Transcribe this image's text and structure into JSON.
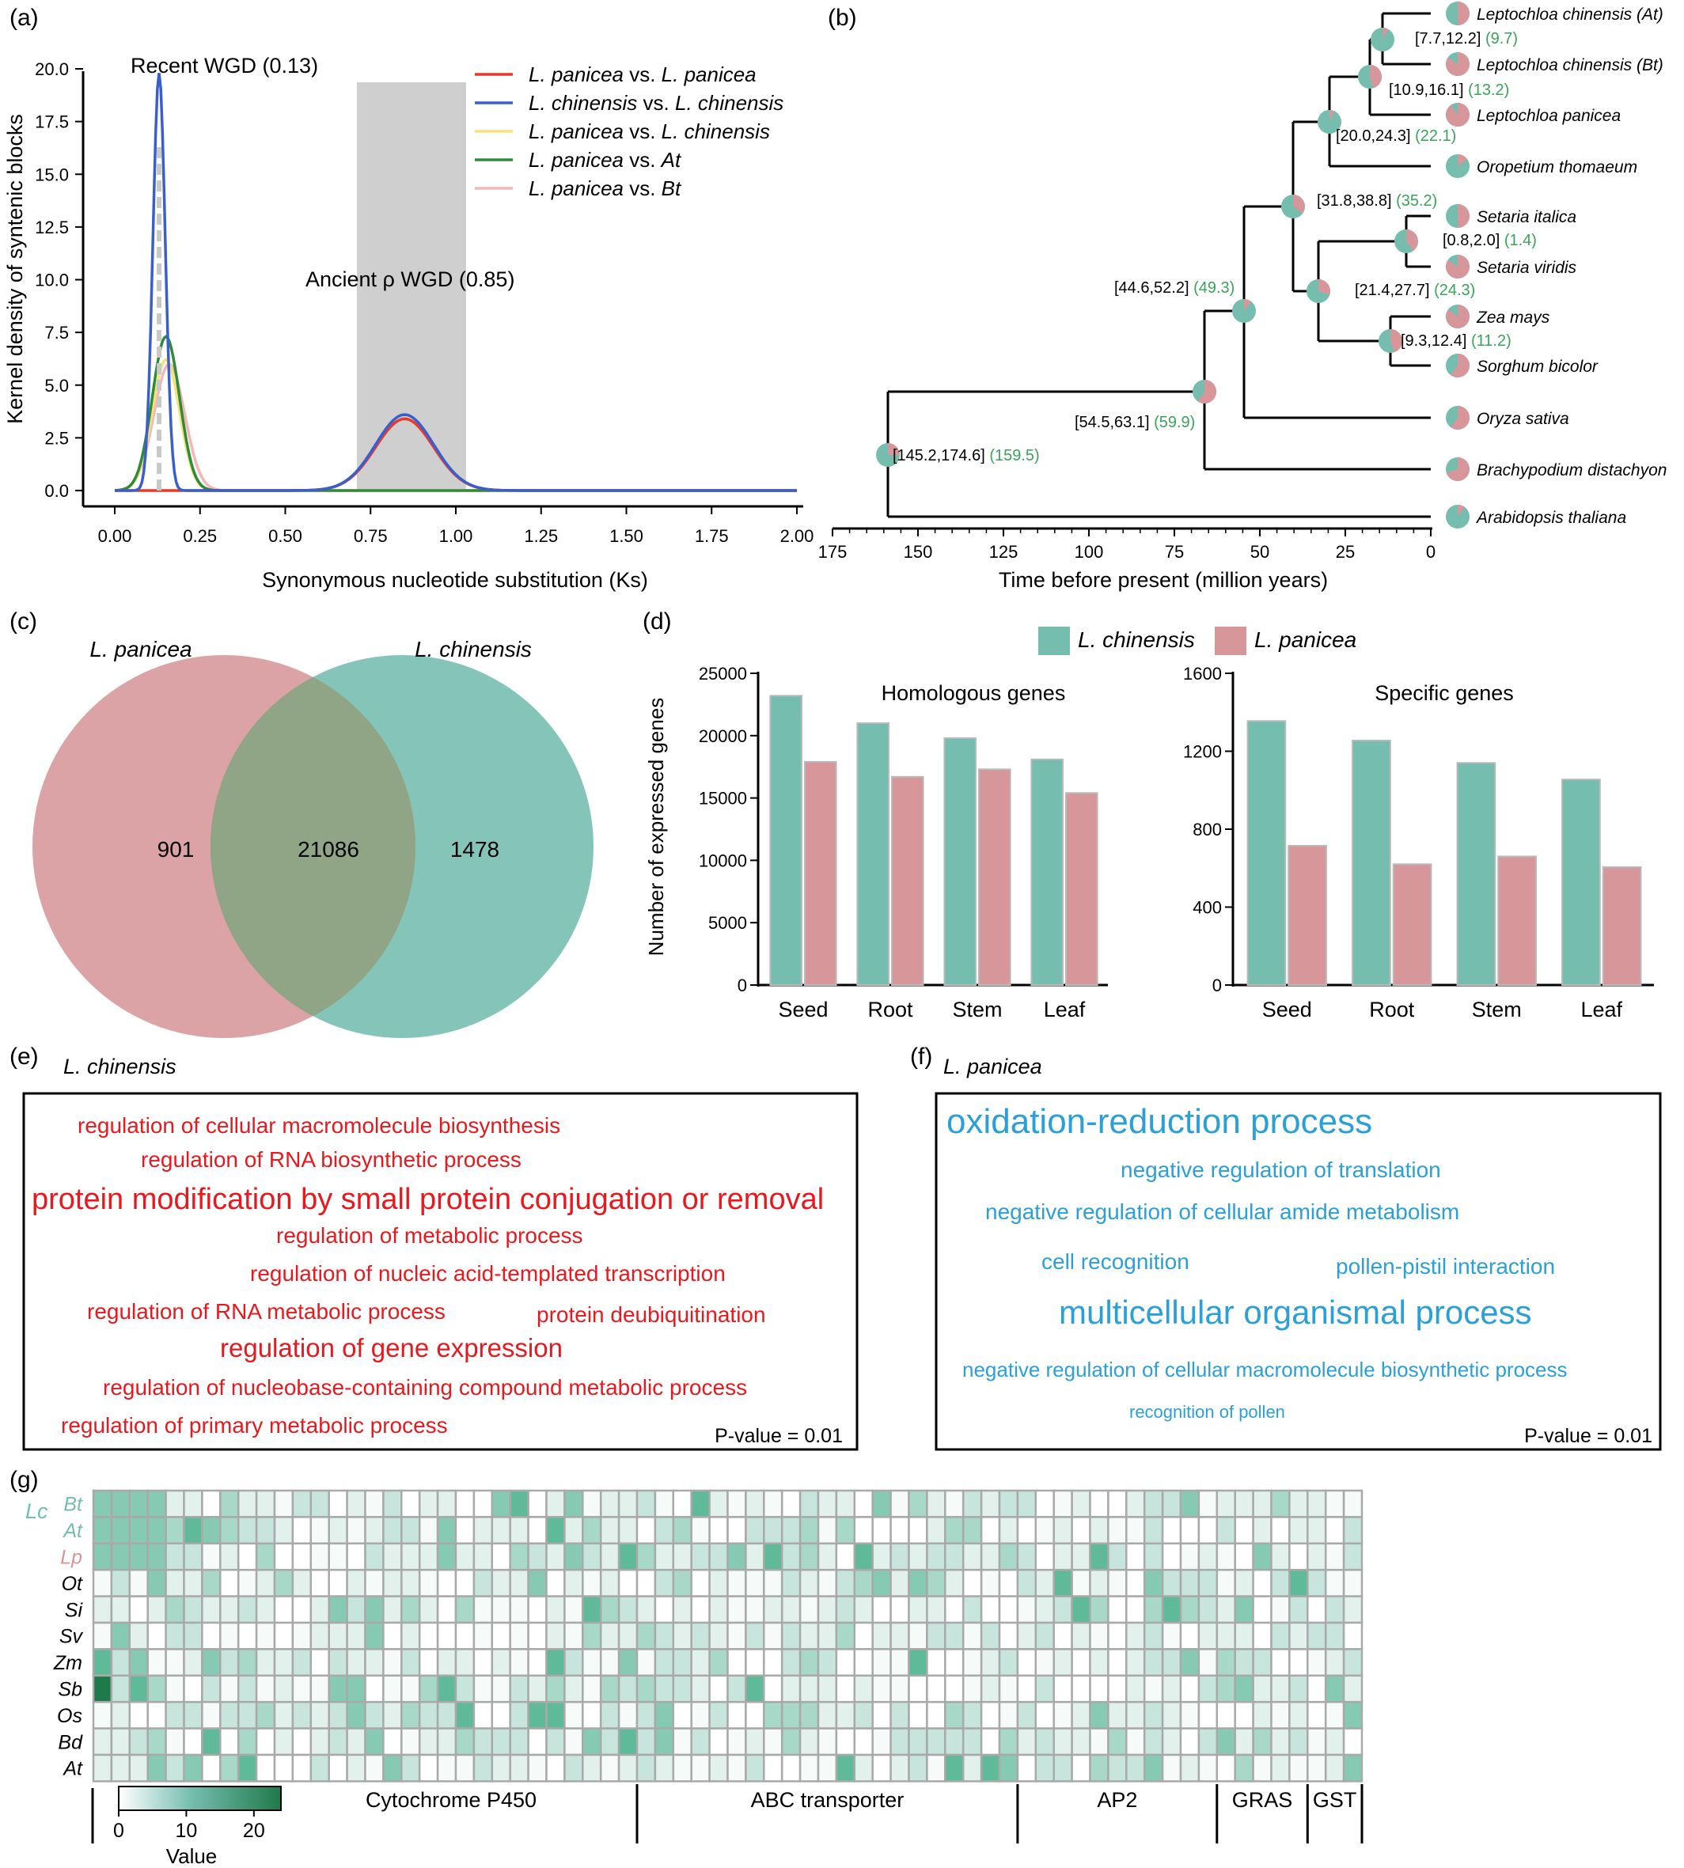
{
  "panel_labels": [
    "(a)",
    "(b)",
    "(c)",
    "(d)",
    "(e)",
    "(f)",
    "(g)"
  ],
  "colors": {
    "lc": "#74bdaf",
    "lp": "#d6969a",
    "red": "#e8191e",
    "blue": "#2b9fd8",
    "ks_lp_lp": "#e8392b",
    "ks_lc_lc": "#3a5fcd",
    "ks_lp_lc": "#f4e37a",
    "ks_lp_at": "#2e8b3a",
    "ks_lp_bt": "#f4b6b6",
    "grey": "#cfcfcf"
  },
  "chart_data": [
    {
      "type": "line",
      "panel": "a",
      "xlabel": "Synonymous nucleotide substitution (Ks)",
      "ylabel": "Kernel density of syntenic blocks",
      "xlim": [
        0,
        2.0
      ],
      "ylim": [
        0,
        20.0
      ],
      "xticks": [
        "0.00",
        "0.25",
        "0.50",
        "0.75",
        "1.00",
        "1.25",
        "1.50",
        "1.75",
        "2.00"
      ],
      "yticks": [
        "0.0",
        "2.5",
        "5.0",
        "7.5",
        "10.0",
        "12.5",
        "15.0",
        "17.5",
        "20.0"
      ],
      "annotations": [
        "Recent WGD (0.13)",
        "Ancient ρ WGD (0.85)"
      ],
      "shaded_range": [
        0.71,
        1.03
      ],
      "series": [
        {
          "name": "L. panicea vs. L. panicea",
          "peaks": [
            [
              0.85,
              3.4,
              0.085
            ]
          ]
        },
        {
          "name": "L. chinensis vs. L. chinensis",
          "peaks": [
            [
              0.13,
              19.8,
              0.018
            ],
            [
              0.85,
              3.6,
              0.085
            ]
          ]
        },
        {
          "name": "L. panicea vs. L. chinensis",
          "peaks": [
            [
              0.15,
              6.2,
              0.04
            ]
          ]
        },
        {
          "name": "L. panicea vs. At",
          "peaks": [
            [
              0.15,
              7.3,
              0.04
            ]
          ]
        },
        {
          "name": "L. panicea vs. Bt",
          "peaks": [
            [
              0.16,
              6.0,
              0.045
            ]
          ]
        }
      ]
    },
    {
      "type": "tree",
      "panel": "b",
      "xlabel": "Time before present (million years)",
      "xticks": [
        "175",
        "150",
        "125",
        "100",
        "75",
        "50",
        "25",
        "0"
      ],
      "leaves": [
        "Leptochloa chinensis (At)",
        "Leptochloa chinensis (Bt)",
        "Leptochloa panicea",
        "Oropetium thomaeum",
        "Setaria italica",
        "Setaria viridis",
        "Zea mays",
        "Sorghum bicolor",
        "Oryza sativa",
        "Brachypodium distachyon",
        "Arabidopsis thaliana"
      ],
      "nodes": [
        {
          "range": "[7.7,12.2]",
          "age": "(9.7)"
        },
        {
          "range": "[10.9,16.1]",
          "age": "(13.2)"
        },
        {
          "range": "[20.0,24.3]",
          "age": "(22.1)"
        },
        {
          "range": "[31.8,38.8]",
          "age": "(35.2)"
        },
        {
          "range": "[0.8,2.0]",
          "age": "(1.4)"
        },
        {
          "range": "[21.4,27.7]",
          "age": "(24.3)"
        },
        {
          "range": "[9.3,12.4]",
          "age": "(11.2)"
        },
        {
          "range": "[44.6,52.2]",
          "age": "(49.3)"
        },
        {
          "range": "[54.5,63.1]",
          "age": "(59.9)"
        },
        {
          "range": "[145.2,174.6]",
          "age": "(159.5)"
        }
      ]
    },
    {
      "type": "venn",
      "panel": "c",
      "sets": [
        "L. panicea",
        "L. chinensis"
      ],
      "values": {
        "only_a": "901",
        "both": "21086",
        "only_b": "1478"
      }
    },
    {
      "type": "bar",
      "panel": "d",
      "ylabel": "Number of expressed genes",
      "legend": [
        "L. chinensis",
        "L. panicea"
      ],
      "subcharts": [
        {
          "title": "Homologous genes",
          "categories": [
            "Seed",
            "Root",
            "Stem",
            "Leaf"
          ],
          "ylim": [
            0,
            25000
          ],
          "yticks": [
            "0",
            "5000",
            "10000",
            "15000",
            "20000",
            "25000"
          ],
          "series": [
            {
              "name": "L. chinensis",
              "values": [
                23200,
                21000,
                19800,
                18100
              ]
            },
            {
              "name": "L. panicea",
              "values": [
                17900,
                16700,
                17300,
                15400
              ]
            }
          ]
        },
        {
          "title": "Specific genes",
          "categories": [
            "Seed",
            "Root",
            "Stem",
            "Leaf"
          ],
          "ylim": [
            0,
            1600
          ],
          "yticks": [
            "0",
            "400",
            "800",
            "1200",
            "1600"
          ],
          "series": [
            {
              "name": "L. chinensis",
              "values": [
                1355,
                1255,
                1140,
                1055
              ]
            },
            {
              "name": "L. panicea",
              "values": [
                715,
                620,
                660,
                605
              ]
            }
          ]
        }
      ]
    },
    {
      "type": "heatmap",
      "panel": "g",
      "rows": [
        "Bt",
        "At",
        "Lp",
        "Ot",
        "Si",
        "Sv",
        "Zm",
        "Sb",
        "Os",
        "Bd",
        "At"
      ],
      "row_group_label": "Lc",
      "families": [
        {
          "name": "Cytochrome P450",
          "columns": 30
        },
        {
          "name": "ABC transporter",
          "columns": 21
        },
        {
          "name": "AP2",
          "columns": 11
        },
        {
          "name": "GRAS",
          "columns": 5
        },
        {
          "name": "GST",
          "columns": 3
        }
      ],
      "colorbar": {
        "label": "Value",
        "ticks": [
          "0",
          "10",
          "20"
        ],
        "range": [
          0,
          24
        ]
      }
    }
  ],
  "panel_e": {
    "species": "L. chinensis",
    "terms": [
      "regulation of cellular macromolecule biosynthesis",
      "regulation of RNA biosynthetic process",
      "protein modification by small protein conjugation or removal",
      "regulation of metabolic process",
      "regulation of nucleic acid-templated transcription",
      "regulation of RNA metabolic process",
      "protein deubiquitination",
      "regulation of gene expression",
      "regulation of nucleobase-containing compound metabolic process",
      "regulation of primary metabolic process"
    ],
    "pvalue": "P-value = 0.01"
  },
  "panel_f": {
    "species": "L. panicea",
    "terms": [
      "oxidation-reduction process",
      "negative regulation of translation",
      "negative regulation of cellular amide metabolism",
      "cell recognition",
      "pollen-pistil interaction",
      "multicellular organismal process",
      "negative regulation of cellular macromolecule biosynthetic process",
      "recognition of pollen"
    ],
    "pvalue": "P-value = 0.01"
  }
}
